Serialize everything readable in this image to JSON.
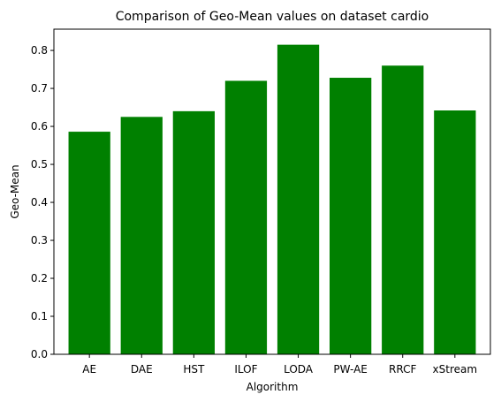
{
  "chart_data": {
    "type": "bar",
    "title": "Comparison of Geo-Mean values on dataset cardio",
    "xlabel": "Algorithm",
    "ylabel": "Geo-Mean",
    "categories": [
      "AE",
      "DAE",
      "HST",
      "ILOF",
      "LODA",
      "PW-AE",
      "RRCF",
      "xStream"
    ],
    "values": [
      0.586,
      0.625,
      0.64,
      0.72,
      0.815,
      0.728,
      0.76,
      0.642
    ],
    "ylim": [
      0,
      0.856
    ],
    "yticks": [
      0.0,
      0.1,
      0.2,
      0.3,
      0.4,
      0.5,
      0.6,
      0.7,
      0.8
    ],
    "ytick_labels": [
      "0.0",
      "0.1",
      "0.2",
      "0.3",
      "0.4",
      "0.5",
      "0.6",
      "0.7",
      "0.8"
    ],
    "grid": false,
    "bar_color": "#008000"
  }
}
